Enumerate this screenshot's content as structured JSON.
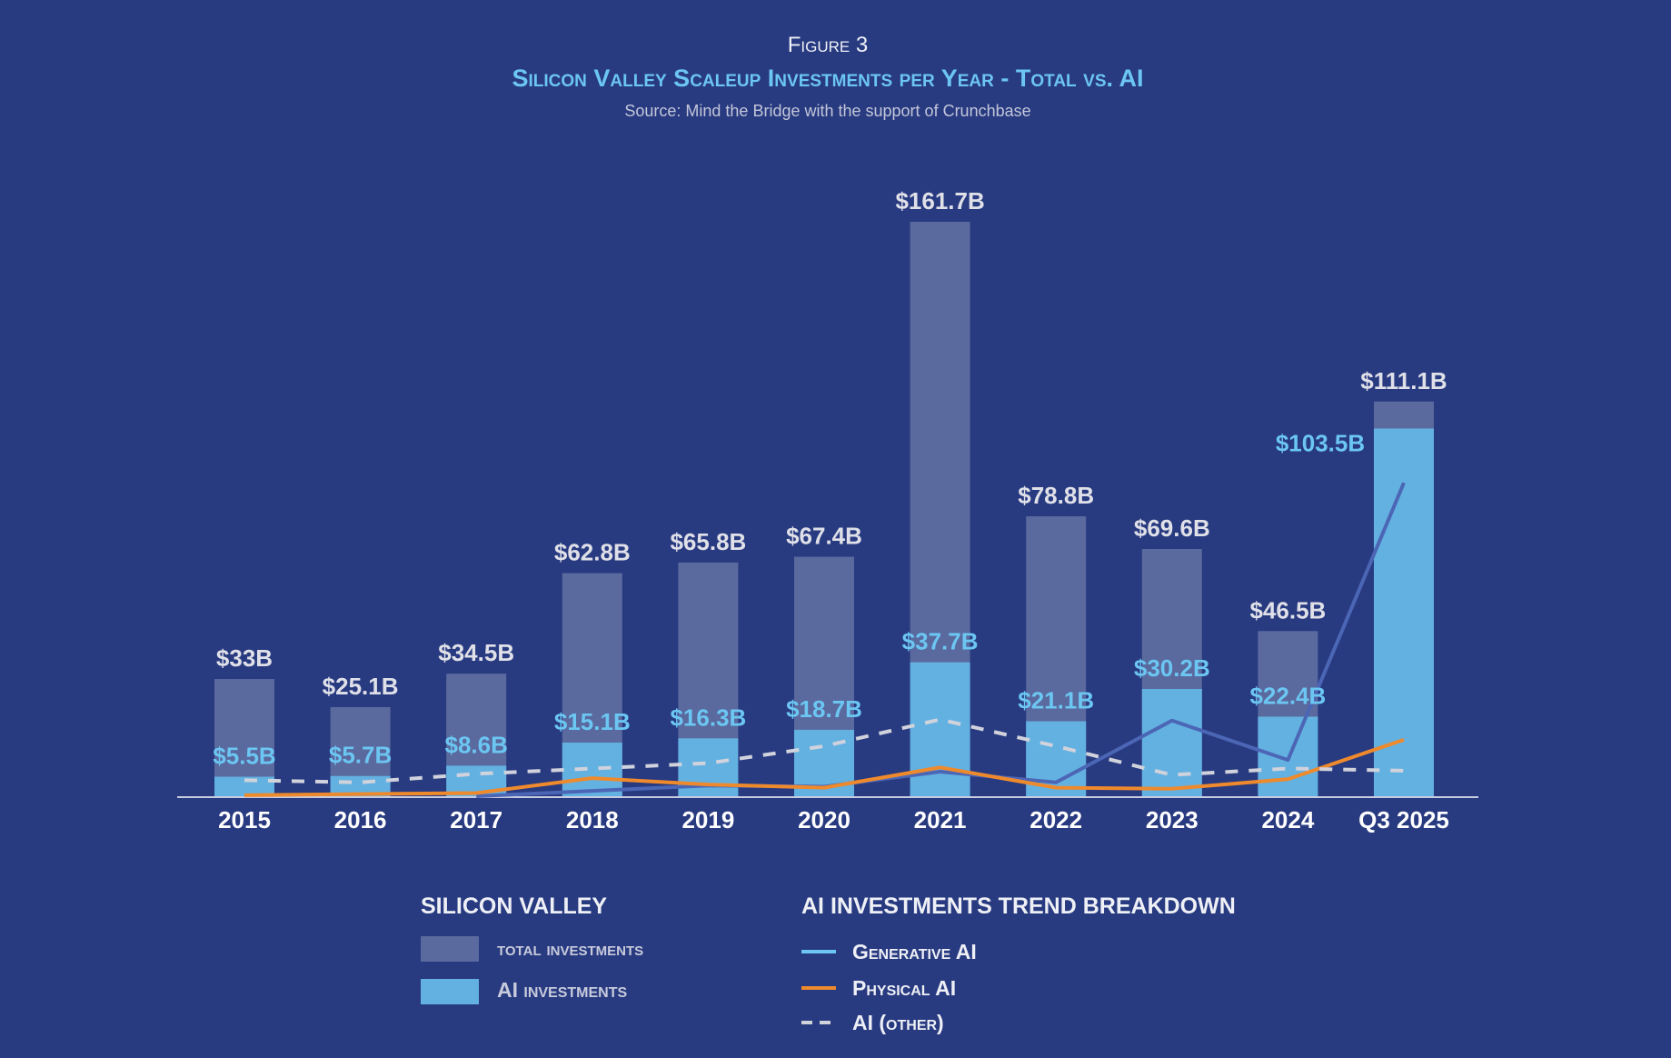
{
  "chart_data": {
    "type": "bar",
    "figure_label": "Figure 3",
    "title": "Silicon Valley Scaleup Investments per Year - Total vs. AI",
    "subtitle": "Source: Mind the Bridge with the support of Crunchbase",
    "categories": [
      "2015",
      "2016",
      "2017",
      "2018",
      "2019",
      "2020",
      "2021",
      "2022",
      "2023",
      "2024",
      "Q3 2025"
    ],
    "unit": "$B",
    "ylim": [
      0,
      170
    ],
    "grid": false,
    "series": [
      {
        "name": "Total investments",
        "kind": "bar",
        "color": "#5a699e",
        "values": [
          33,
          25.1,
          34.5,
          62.8,
          65.8,
          67.4,
          161.7,
          78.8,
          69.6,
          46.5,
          111.1
        ],
        "labels": [
          "$33B",
          "$25.1B",
          "$34.5B",
          "$62.8B",
          "$65.8B",
          "$67.4B",
          "$161.7B",
          "$78.8B",
          "$69.6B",
          "$46.5B",
          "$111.1B"
        ]
      },
      {
        "name": "AI investments",
        "kind": "bar",
        "color": "#63b1e1",
        "values": [
          5.5,
          5.7,
          8.6,
          15.1,
          16.3,
          18.7,
          37.7,
          21.1,
          30.2,
          22.4,
          103.5
        ],
        "labels": [
          "$5.5B",
          "$5.7B",
          "$8.6B",
          "$15.1B",
          "$16.3B",
          "$18.7B",
          "$37.7B",
          "$21.1B",
          "$30.2B",
          "$22.4B",
          "$103.5B"
        ]
      },
      {
        "name": "Generative AI",
        "kind": "line",
        "color": "#4c66b6",
        "legend_color": "#6cc6f2",
        "values": [
          null,
          null,
          0,
          1.5,
          3,
          2.7,
          6.9,
          3.9,
          21.3,
          10.2,
          88.2
        ]
      },
      {
        "name": "Physical AI",
        "kind": "line",
        "color": "#ef8a2c",
        "values": [
          0.3,
          0.6,
          0.9,
          5.1,
          3.3,
          2.4,
          8.1,
          2.4,
          2.1,
          4.8,
          15.9
        ]
      },
      {
        "name": "AI (other)",
        "kind": "dashed-line",
        "color": "#d0d2dc",
        "values": [
          4.5,
          3.9,
          6.3,
          7.8,
          9.3,
          14.1,
          21.6,
          14.1,
          6.0,
          7.8,
          7.2
        ]
      }
    ],
    "legend": {
      "left_title": "SILICON VALLEY",
      "left_items": [
        "Total investments",
        "AI investments"
      ],
      "right_title": "AI INVESTMENTS TREND BREAKDOWN",
      "right_items": [
        "Generative AI",
        "Physical AI",
        "AI (other)"
      ],
      "placement": "bottom"
    }
  }
}
